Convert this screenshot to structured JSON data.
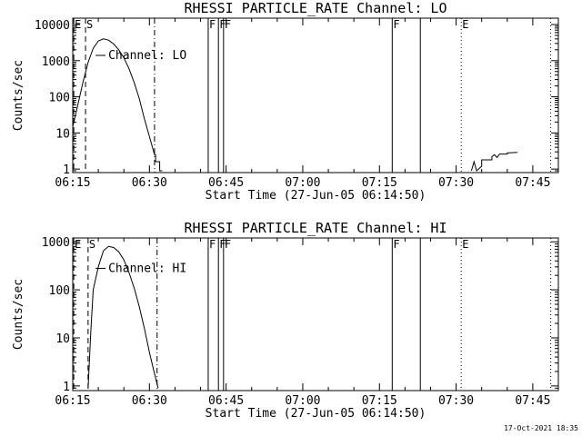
{
  "chart_data": [
    {
      "type": "line",
      "title": "RHESSI PARTICLE_RATE Channel: LO",
      "xlabel": "Start Time (27-Jun-05 06:14:50)",
      "ylabel": "Counts/sec",
      "yscale": "log",
      "xlim_minutes": [
        0,
        95
      ],
      "ylim": [
        0.8,
        15000
      ],
      "x_ticks": [
        {
          "t": 0,
          "label": "06:15"
        },
        {
          "t": 15,
          "label": "06:30"
        },
        {
          "t": 30,
          "label": "06:45"
        },
        {
          "t": 45,
          "label": "07:00"
        },
        {
          "t": 60,
          "label": "07:15"
        },
        {
          "t": 75,
          "label": "07:30"
        },
        {
          "t": 90,
          "label": "07:45"
        }
      ],
      "y_ticks": [
        {
          "v": 1,
          "label": "1"
        },
        {
          "v": 10,
          "label": "10"
        },
        {
          "v": 100,
          "label": "100"
        },
        {
          "v": 1000,
          "label": "1000"
        },
        {
          "v": 10000,
          "label": "10000"
        }
      ],
      "series_label": "Channel: LO",
      "series_label_anchor": {
        "t": 5,
        "v": 1400
      },
      "series": [
        {
          "name": "Channel: LO",
          "x": [
            0,
            1,
            2,
            3,
            4,
            5,
            6,
            7,
            8,
            9,
            10,
            11,
            12,
            13,
            14,
            15,
            16,
            16.2,
            16.2,
            17,
            17,
            17.5
          ],
          "y": [
            15,
            60,
            250,
            900,
            2200,
            3500,
            4000,
            3700,
            2900,
            2000,
            1200,
            600,
            250,
            90,
            25,
            8,
            2.5,
            2.5,
            1.6,
            1.6,
            0.9,
            0.9
          ]
        },
        {
          "name": "late",
          "x": [
            78,
            78.5,
            79,
            80,
            80,
            82,
            82,
            82.5,
            83,
            83.5,
            84,
            85,
            85,
            87
          ],
          "y": [
            0.9,
            1.6,
            0.9,
            1.2,
            1.8,
            1.8,
            2.2,
            2.5,
            2.1,
            2.6,
            2.6,
            2.6,
            2.8,
            2.9
          ]
        }
      ],
      "markers": [
        {
          "t": 0.2,
          "style": "dashed",
          "label": "E"
        },
        {
          "t": 2.5,
          "style": "dashed",
          "label": "S"
        },
        {
          "t": 16,
          "style": "dashdot",
          "label": ""
        },
        {
          "t": 26.5,
          "style": "solid",
          "label": "F"
        },
        {
          "t": 28.5,
          "style": "solid",
          "label": "F"
        },
        {
          "t": 29.5,
          "style": "solid",
          "label": "F"
        },
        {
          "t": 62.5,
          "style": "solid",
          "label": "F"
        },
        {
          "t": 68,
          "style": "solid",
          "label": ""
        },
        {
          "t": 76,
          "style": "dotted",
          "label": "E"
        },
        {
          "t": 93.5,
          "style": "dotted",
          "label": ""
        }
      ]
    },
    {
      "type": "line",
      "title": "RHESSI PARTICLE_RATE Channel: HI",
      "xlabel": "Start Time (27-Jun-05 06:14:50)",
      "ylabel": "Counts/sec",
      "yscale": "log",
      "xlim_minutes": [
        0,
        95
      ],
      "ylim": [
        0.8,
        1200
      ],
      "x_ticks": [
        {
          "t": 0,
          "label": "06:15"
        },
        {
          "t": 15,
          "label": "06:30"
        },
        {
          "t": 30,
          "label": "06:45"
        },
        {
          "t": 45,
          "label": "07:00"
        },
        {
          "t": 60,
          "label": "07:15"
        },
        {
          "t": 75,
          "label": "07:30"
        },
        {
          "t": 90,
          "label": "07:45"
        }
      ],
      "y_ticks": [
        {
          "v": 1,
          "label": "1"
        },
        {
          "v": 10,
          "label": "10"
        },
        {
          "v": 100,
          "label": "100"
        },
        {
          "v": 1000,
          "label": "1000"
        }
      ],
      "series_label": "Channel: HI",
      "series_label_anchor": {
        "t": 5,
        "v": 280
      },
      "series": [
        {
          "name": "Channel: HI",
          "x": [
            3,
            3.5,
            4,
            5,
            6,
            7,
            8,
            9,
            10,
            11,
            12,
            13,
            14,
            15,
            16,
            16.7
          ],
          "y": [
            0.9,
            12,
            100,
            300,
            650,
            800,
            760,
            620,
            420,
            230,
            110,
            45,
            16,
            5,
            1.8,
            0.9
          ]
        }
      ],
      "markers": [
        {
          "t": 0.2,
          "style": "dashed",
          "label": "E"
        },
        {
          "t": 3.0,
          "style": "dashed",
          "label": "S"
        },
        {
          "t": 16.5,
          "style": "dashdot",
          "label": ""
        },
        {
          "t": 26.5,
          "style": "solid",
          "label": "F"
        },
        {
          "t": 28.5,
          "style": "solid",
          "label": "F"
        },
        {
          "t": 29.5,
          "style": "solid",
          "label": "F"
        },
        {
          "t": 62.5,
          "style": "solid",
          "label": "F"
        },
        {
          "t": 68,
          "style": "solid",
          "label": ""
        },
        {
          "t": 76,
          "style": "dotted",
          "label": "E"
        },
        {
          "t": 93.5,
          "style": "dotted",
          "label": ""
        }
      ]
    }
  ],
  "footer": {
    "timestamp": "17-Oct-2021 18:35"
  }
}
